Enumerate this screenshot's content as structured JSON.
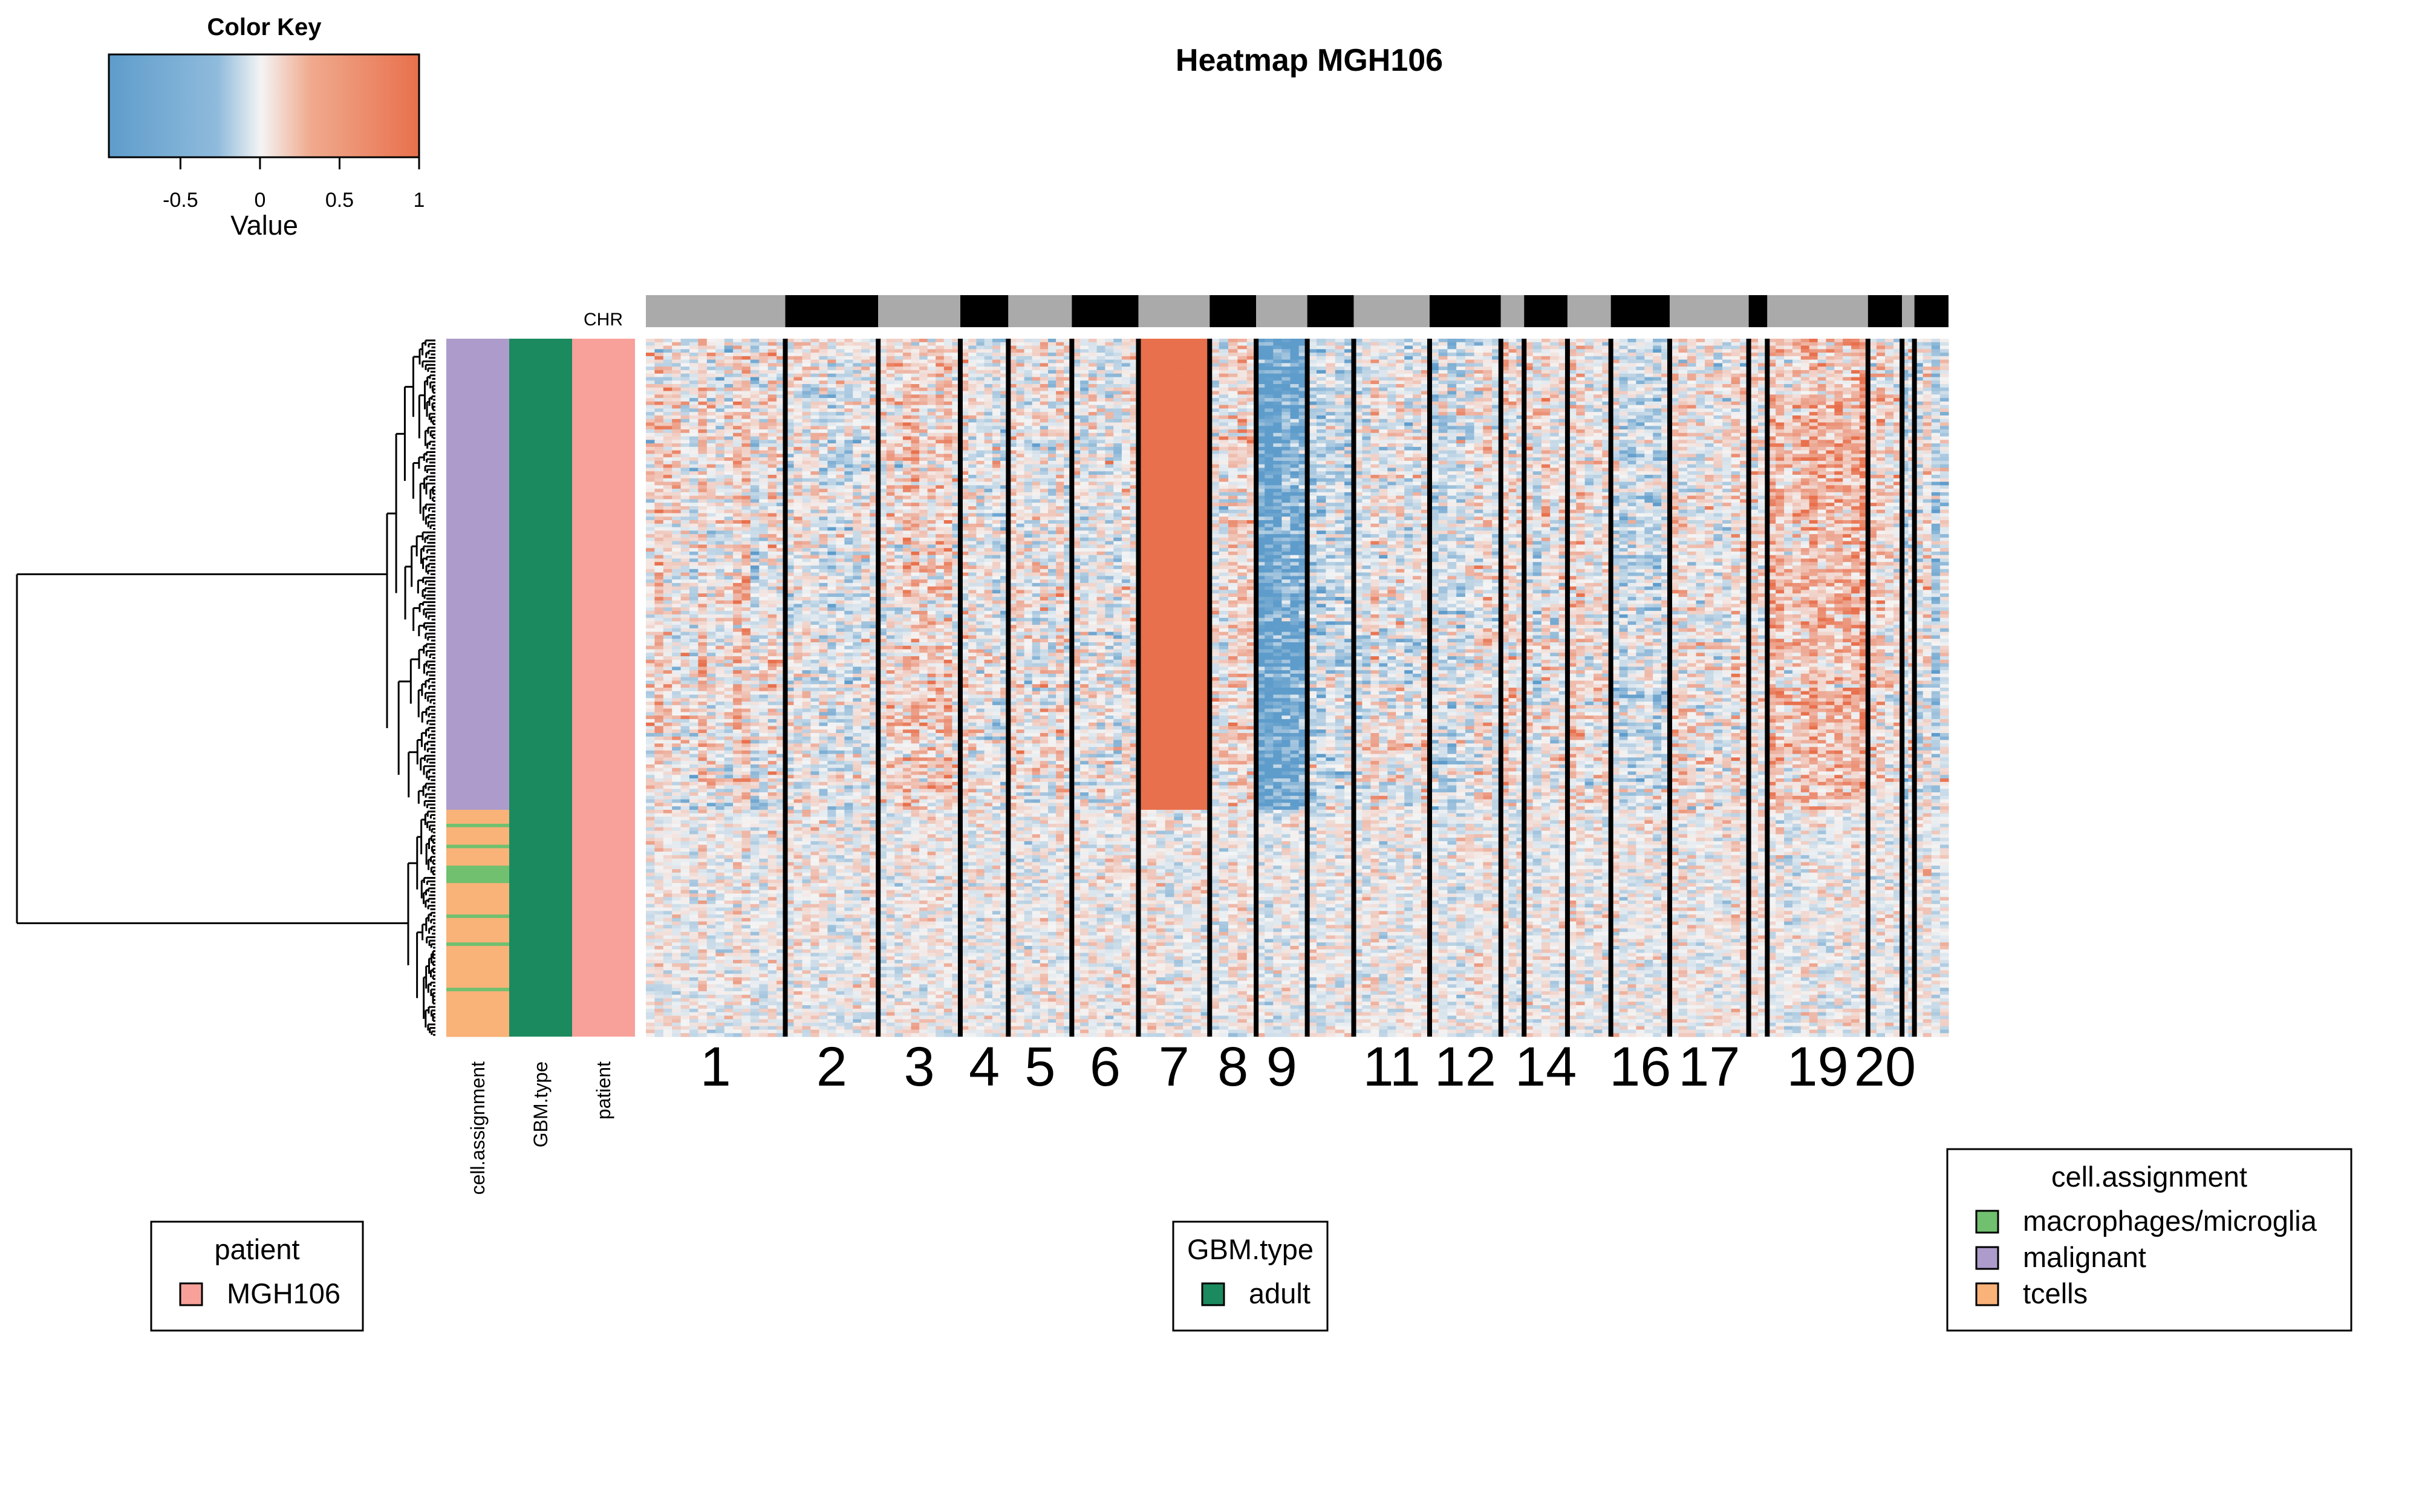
{
  "chart_data": {
    "type": "heatmap",
    "title": "Heatmap  MGH106",
    "color_key": {
      "title": "Color Key",
      "xlabel": "Value",
      "range": [
        -0.95,
        1.0
      ],
      "ticks": [
        "-0.5",
        "0",
        "0.5",
        "1"
      ],
      "tick_values": [
        -0.5,
        0,
        0.5,
        1
      ],
      "colors": {
        "low": "#5e9ccb",
        "mid": "#f4f4f4",
        "high": "#e8704c"
      }
    },
    "chr_track": {
      "label": "CHR",
      "colors": {
        "gray": "#aaaaaa",
        "black": "#000000"
      },
      "segments": [
        {
          "chr": "1",
          "rel_width": 90,
          "color": "gray",
          "label": "1"
        },
        {
          "chr": "2",
          "rel_width": 60,
          "color": "black",
          "label": "2"
        },
        {
          "chr": "3",
          "rel_width": 53,
          "color": "gray",
          "label": "3"
        },
        {
          "chr": "4",
          "rel_width": 31,
          "color": "black",
          "label": "4"
        },
        {
          "chr": "5",
          "rel_width": 41,
          "color": "gray",
          "label": "5"
        },
        {
          "chr": "6",
          "rel_width": 43,
          "color": "black",
          "label": "6"
        },
        {
          "chr": "7",
          "rel_width": 46,
          "color": "gray",
          "label": "7"
        },
        {
          "chr": "8",
          "rel_width": 30,
          "color": "black",
          "label": "8"
        },
        {
          "chr": "9",
          "rel_width": 33,
          "color": "gray",
          "label": "9"
        },
        {
          "chr": "10",
          "rel_width": 30,
          "color": "black",
          "label": ""
        },
        {
          "chr": "11",
          "rel_width": 49,
          "color": "gray",
          "label": "11"
        },
        {
          "chr": "12",
          "rel_width": 46,
          "color": "black",
          "label": "12"
        },
        {
          "chr": "13",
          "rel_width": 15,
          "color": "gray",
          "label": ""
        },
        {
          "chr": "14",
          "rel_width": 28,
          "color": "black",
          "label": "14"
        },
        {
          "chr": "15",
          "rel_width": 28,
          "color": "gray",
          "label": ""
        },
        {
          "chr": "16",
          "rel_width": 38,
          "color": "black",
          "label": "16"
        },
        {
          "chr": "17",
          "rel_width": 51,
          "color": "gray",
          "label": "17"
        },
        {
          "chr": "18",
          "rel_width": 12,
          "color": "black",
          "label": ""
        },
        {
          "chr": "19",
          "rel_width": 65,
          "color": "gray",
          "label": "19"
        },
        {
          "chr": "20",
          "rel_width": 22,
          "color": "black",
          "label": "20"
        },
        {
          "chr": "21",
          "rel_width": 8,
          "color": "gray",
          "label": ""
        },
        {
          "chr": "22",
          "rel_width": 22,
          "color": "black",
          "label": ""
        }
      ]
    },
    "row_annotations": {
      "columns": [
        "cell.assignment",
        "GBM.type",
        "patient"
      ],
      "cell_count": 200,
      "cell_assignment_blocks": [
        {
          "value": "malignant",
          "from": 0,
          "to": 135
        },
        {
          "value": "tcells",
          "from": 135,
          "to": 139
        },
        {
          "value": "macrophages/microglia",
          "from": 139,
          "to": 140
        },
        {
          "value": "tcells",
          "from": 140,
          "to": 145
        },
        {
          "value": "macrophages/microglia",
          "from": 145,
          "to": 146
        },
        {
          "value": "tcells",
          "from": 146,
          "to": 151
        },
        {
          "value": "macrophages/microglia",
          "from": 151,
          "to": 156
        },
        {
          "value": "tcells",
          "from": 156,
          "to": 165
        },
        {
          "value": "macrophages/microglia",
          "from": 165,
          "to": 166
        },
        {
          "value": "tcells",
          "from": 166,
          "to": 173
        },
        {
          "value": "macrophages/microglia",
          "from": 173,
          "to": 174
        },
        {
          "value": "tcells",
          "from": 174,
          "to": 186
        },
        {
          "value": "macrophages/microglia",
          "from": 186,
          "to": 187
        },
        {
          "value": "tcells",
          "from": 187,
          "to": 200
        }
      ],
      "gbm_type": "adult",
      "patient": "MGH106"
    },
    "chromosome_bias_malignant": {
      "1": 0.05,
      "2": -0.05,
      "3": 0.15,
      "4": 0.0,
      "5": 0.05,
      "6": -0.05,
      "7": 0.9,
      "8": 0.05,
      "9": -0.55,
      "10": -0.15,
      "11": 0.0,
      "12": -0.05,
      "13": 0.1,
      "14": 0.0,
      "15": 0.05,
      "16": -0.1,
      "17": 0.0,
      "18": -0.05,
      "19": 0.35,
      "20": 0.15,
      "21": 0.0,
      "22": -0.05
    },
    "legends": [
      {
        "title": "patient",
        "items": [
          {
            "label": "MGH106",
            "color": "#f7a19a"
          }
        ]
      },
      {
        "title": "GBM.type",
        "items": [
          {
            "label": "adult",
            "color": "#1b8a5e"
          }
        ]
      },
      {
        "title": "cell.assignment",
        "items": [
          {
            "label": "macrophages/microglia",
            "color": "#70c06f"
          },
          {
            "label": "malignant",
            "color": "#ad9ccb"
          },
          {
            "label": "tcells",
            "color": "#f9b278"
          }
        ]
      }
    ]
  }
}
